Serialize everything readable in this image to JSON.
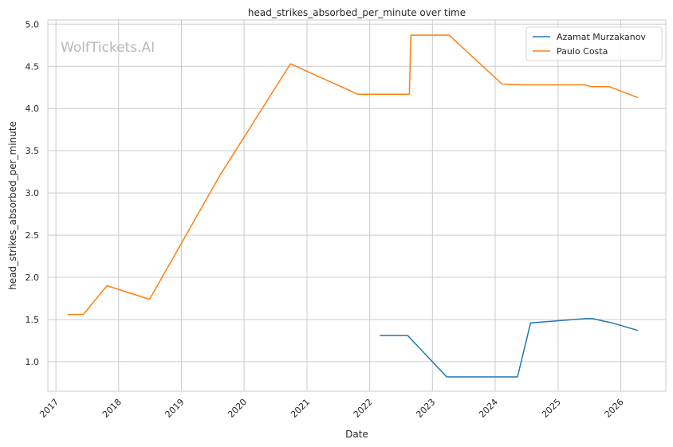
{
  "chart_data": {
    "type": "line",
    "title": "head_strikes_absorbed_per_minute over time",
    "xlabel": "Date",
    "ylabel": "head_strikes_absorbed_per_minute",
    "watermark": "WolfTickets.AI",
    "xlim": [
      "2016-11-15",
      "2026-09-20"
    ],
    "ylim": [
      0.65,
      5.05
    ],
    "x_ticks": [
      "2017",
      "2018",
      "2019",
      "2020",
      "2021",
      "2022",
      "2023",
      "2024",
      "2025",
      "2026"
    ],
    "y_ticks": [
      "1.0",
      "1.5",
      "2.0",
      "2.5",
      "3.0",
      "3.5",
      "4.0",
      "4.5",
      "5.0"
    ],
    "grid": true,
    "legend_position": "top-right",
    "series": [
      {
        "name": "Azamat Murzakanov",
        "color": "#1f77b4",
        "points": [
          {
            "x": "2022-03-01",
            "y": 1.31
          },
          {
            "x": "2022-08-10",
            "y": 1.31
          },
          {
            "x": "2023-03-25",
            "y": 0.82
          },
          {
            "x": "2024-05-10",
            "y": 0.82
          },
          {
            "x": "2024-07-25",
            "y": 1.46
          },
          {
            "x": "2025-06-10",
            "y": 1.51
          },
          {
            "x": "2025-07-20",
            "y": 1.51
          },
          {
            "x": "2025-11-10",
            "y": 1.46
          },
          {
            "x": "2026-04-10",
            "y": 1.37
          }
        ]
      },
      {
        "name": "Paulo Costa",
        "color": "#ff7f0e",
        "points": [
          {
            "x": "2017-03-10",
            "y": 1.56
          },
          {
            "x": "2017-06-10",
            "y": 1.56
          },
          {
            "x": "2017-10-25",
            "y": 1.9
          },
          {
            "x": "2018-06-30",
            "y": 1.74
          },
          {
            "x": "2019-08-17",
            "y": 3.22
          },
          {
            "x": "2020-09-27",
            "y": 4.53
          },
          {
            "x": "2021-10-23",
            "y": 4.17
          },
          {
            "x": "2022-08-20",
            "y": 4.17
          },
          {
            "x": "2022-08-28",
            "y": 4.87
          },
          {
            "x": "2023-04-08",
            "y": 4.87
          },
          {
            "x": "2024-02-10",
            "y": 4.29
          },
          {
            "x": "2024-06-10",
            "y": 4.28
          },
          {
            "x": "2025-05-31",
            "y": 4.28
          },
          {
            "x": "2025-07-15",
            "y": 4.26
          },
          {
            "x": "2025-10-25",
            "y": 4.26
          },
          {
            "x": "2026-04-10",
            "y": 4.13
          }
        ]
      }
    ]
  }
}
